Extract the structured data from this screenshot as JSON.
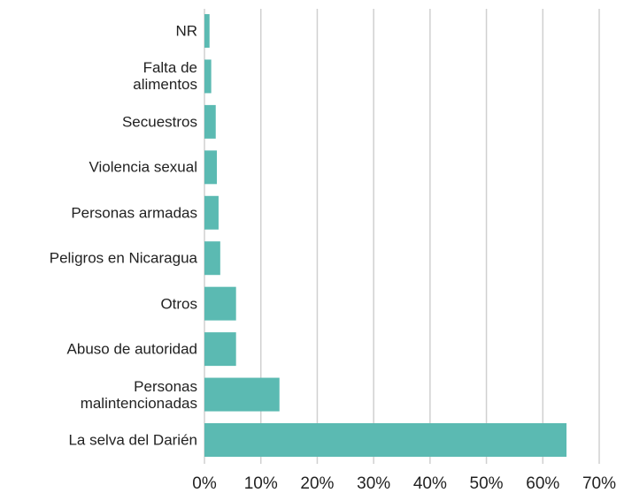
{
  "chart_data": {
    "type": "barh",
    "categories": [
      "NR",
      "Falta de\nalimentos",
      "Secuestros",
      "Violencia sexual",
      "Personas armadas",
      "Peligros en Nicaragua",
      "Otros",
      "Abuso de autoridad",
      "Personas\nmalintencionadas",
      "La selva del Darién"
    ],
    "values": [
      0.9,
      1.2,
      2.0,
      2.2,
      2.5,
      2.8,
      5.6,
      5.6,
      13.3,
      64.2
    ],
    "color": "#5bbab2",
    "xlim": [
      0,
      70
    ],
    "xticks": [
      {
        "value": 0,
        "label": "0%"
      },
      {
        "value": 10,
        "label": "10%"
      },
      {
        "value": 20,
        "label": "20%"
      },
      {
        "value": 30,
        "label": "30%"
      },
      {
        "value": 40,
        "label": "40%"
      },
      {
        "value": 50,
        "label": "50%"
      },
      {
        "value": 60,
        "label": "60%"
      },
      {
        "value": 70,
        "label": "70%"
      }
    ],
    "grid": true
  }
}
